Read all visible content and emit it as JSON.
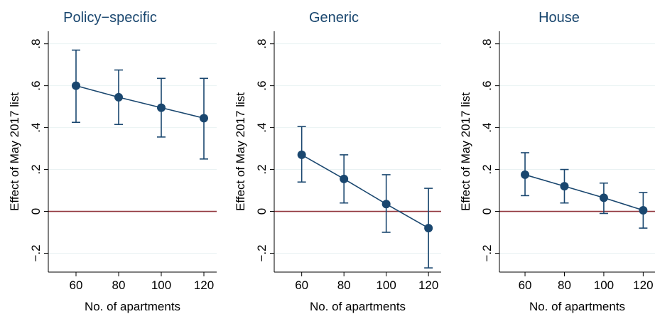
{
  "colors": {
    "series": "#1a476f",
    "reference_line": "#90353b",
    "grid": "#eaf2f3",
    "axis": "#000000"
  },
  "chart_data": [
    {
      "type": "line",
      "title": "Policy−specific",
      "xlabel": "No. of apartments",
      "ylabel": "Effect of May 2017 list",
      "x": [
        60,
        80,
        100,
        120
      ],
      "x_tick_labels": [
        "60",
        "80",
        "100",
        "120"
      ],
      "y_tick_values": [
        -0.2,
        0,
        0.2,
        0.4,
        0.6,
        0.8
      ],
      "y_tick_labels": [
        "−.2",
        "0",
        ".2",
        ".4",
        ".6",
        ".8"
      ],
      "xlim": [
        47,
        126
      ],
      "ylim": [
        -0.29,
        0.86
      ],
      "grid": true,
      "reference_line_y": 0,
      "series": [
        {
          "values": [
            0.6,
            0.545,
            0.495,
            0.445
          ],
          "ci_low": [
            0.425,
            0.415,
            0.355,
            0.25
          ],
          "ci_high": [
            0.77,
            0.675,
            0.635,
            0.635
          ]
        }
      ]
    },
    {
      "type": "line",
      "title": "Generic",
      "xlabel": "No. of apartments",
      "ylabel": "Effect of May 2017 list",
      "x": [
        60,
        80,
        100,
        120
      ],
      "x_tick_labels": [
        "60",
        "80",
        "100",
        "120"
      ],
      "y_tick_values": [
        -0.2,
        0,
        0.2,
        0.4,
        0.6,
        0.8
      ],
      "y_tick_labels": [
        "−.2",
        "0",
        ".2",
        ".4",
        ".6",
        ".8"
      ],
      "xlim": [
        47,
        126
      ],
      "ylim": [
        -0.29,
        0.86
      ],
      "grid": true,
      "reference_line_y": 0,
      "series": [
        {
          "values": [
            0.27,
            0.155,
            0.035,
            -0.08
          ],
          "ci_low": [
            0.14,
            0.04,
            -0.1,
            -0.27
          ],
          "ci_high": [
            0.405,
            0.27,
            0.175,
            0.11
          ]
        }
      ]
    },
    {
      "type": "line",
      "title": "House",
      "xlabel": "No. of apartments",
      "ylabel": "Effect of May 2017 list",
      "x": [
        60,
        80,
        100,
        120
      ],
      "x_tick_labels": [
        "60",
        "80",
        "100",
        "120"
      ],
      "y_tick_values": [
        -0.2,
        0,
        0.2,
        0.4,
        0.6,
        0.8
      ],
      "y_tick_labels": [
        "−.2",
        "0",
        ".2",
        ".4",
        ".6",
        ".8"
      ],
      "xlim": [
        47,
        126
      ],
      "ylim": [
        -0.29,
        0.86
      ],
      "grid": true,
      "reference_line_y": 0,
      "series": [
        {
          "values": [
            0.175,
            0.12,
            0.065,
            0.005
          ],
          "ci_low": [
            0.075,
            0.04,
            -0.01,
            -0.08
          ],
          "ci_high": [
            0.28,
            0.2,
            0.135,
            0.09
          ]
        }
      ]
    }
  ]
}
